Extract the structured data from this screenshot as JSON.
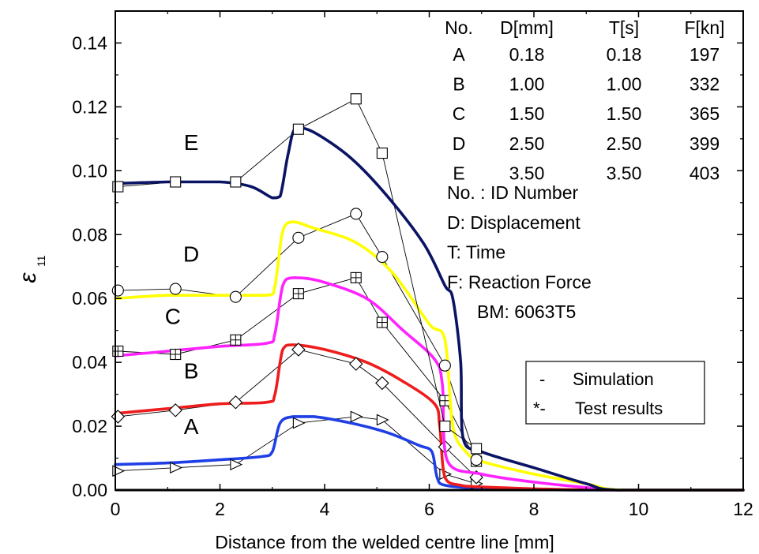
{
  "chart_data": {
    "type": "line",
    "xlabel": "Distance from the welded centre line [mm]",
    "ylabel": "ε",
    "ylabel_sub": "11",
    "xlim": [
      0,
      12
    ],
    "ylim": [
      0,
      0.15
    ],
    "x_ticks": [
      "0",
      "2",
      "4",
      "6",
      "8",
      "10",
      "12"
    ],
    "x_tick_values": [
      0,
      2,
      4,
      6,
      8,
      10,
      12
    ],
    "y_ticks": [
      "0.00",
      "0.02",
      "0.04",
      "0.06",
      "0.08",
      "0.10",
      "0.12",
      "0.14"
    ],
    "y_tick_values": [
      0,
      0.02,
      0.04,
      0.06,
      0.08,
      0.1,
      0.12,
      0.14
    ],
    "grid": false,
    "series": [
      {
        "name": "A",
        "color": "#1f3fe6",
        "marker": "triangle-right",
        "simulation": [
          [
            0,
            0.008
          ],
          [
            1,
            0.0085
          ],
          [
            2,
            0.0095
          ],
          [
            2.8,
            0.0105
          ],
          [
            3,
            0.012
          ],
          [
            3.15,
            0.021
          ],
          [
            3.4,
            0.023
          ],
          [
            3.8,
            0.023
          ],
          [
            4.5,
            0.021
          ],
          [
            5.2,
            0.018
          ],
          [
            5.8,
            0.014
          ],
          [
            6.05,
            0.012
          ],
          [
            6.15,
            0.004
          ],
          [
            6.3,
            0.0015
          ],
          [
            7,
            0.0005
          ],
          [
            8,
            0.0002
          ],
          [
            9,
            0
          ],
          [
            12,
            0
          ]
        ],
        "test": [
          [
            0.05,
            0.006
          ],
          [
            1.15,
            0.007
          ],
          [
            2.3,
            0.008
          ],
          [
            3.5,
            0.021
          ],
          [
            4.6,
            0.023
          ],
          [
            5.1,
            0.022
          ],
          [
            6.3,
            0.005
          ],
          [
            6.9,
            0.002
          ]
        ]
      },
      {
        "name": "B",
        "color": "#ee1c1c",
        "marker": "diamond",
        "simulation": [
          [
            0,
            0.024
          ],
          [
            1,
            0.0255
          ],
          [
            2,
            0.027
          ],
          [
            2.9,
            0.0275
          ],
          [
            3.05,
            0.03
          ],
          [
            3.2,
            0.044
          ],
          [
            3.4,
            0.0455
          ],
          [
            4,
            0.044
          ],
          [
            4.8,
            0.04
          ],
          [
            5.5,
            0.034
          ],
          [
            6.1,
            0.027
          ],
          [
            6.2,
            0.02
          ],
          [
            6.3,
            0.004
          ],
          [
            6.6,
            0.0015
          ],
          [
            7,
            0.001
          ],
          [
            8,
            0.0004
          ],
          [
            9,
            0.0001
          ],
          [
            10,
            0
          ],
          [
            12,
            0
          ]
        ],
        "test": [
          [
            0.05,
            0.023
          ],
          [
            1.15,
            0.025
          ],
          [
            2.3,
            0.0275
          ],
          [
            3.5,
            0.044
          ],
          [
            4.6,
            0.0395
          ],
          [
            5.1,
            0.0335
          ],
          [
            6.3,
            0.0135
          ],
          [
            6.9,
            0.004
          ]
        ]
      },
      {
        "name": "C",
        "color": "#ff22ff",
        "marker": "square-plus",
        "simulation": [
          [
            0,
            0.042
          ],
          [
            1,
            0.0435
          ],
          [
            2,
            0.045
          ],
          [
            2.9,
            0.046
          ],
          [
            3.05,
            0.049
          ],
          [
            3.2,
            0.064
          ],
          [
            3.4,
            0.0665
          ],
          [
            3.9,
            0.0655
          ],
          [
            4.8,
            0.06
          ],
          [
            5.5,
            0.05
          ],
          [
            6.1,
            0.041
          ],
          [
            6.25,
            0.033
          ],
          [
            6.35,
            0.009
          ],
          [
            7,
            0.005
          ],
          [
            8,
            0.0025
          ],
          [
            9,
            0.0008
          ],
          [
            9.7,
            0
          ],
          [
            12,
            0
          ]
        ],
        "test": [
          [
            0.05,
            0.0435
          ],
          [
            1.15,
            0.0425
          ],
          [
            2.3,
            0.047
          ],
          [
            3.5,
            0.0615
          ],
          [
            4.6,
            0.0665
          ],
          [
            5.1,
            0.0525
          ],
          [
            6.3,
            0.028
          ],
          [
            6.9,
            0.009
          ]
        ]
      },
      {
        "name": "D",
        "color": "#ffff00",
        "marker": "circle",
        "simulation": [
          [
            0,
            0.06
          ],
          [
            1,
            0.061
          ],
          [
            2,
            0.061
          ],
          [
            2.9,
            0.061
          ],
          [
            3.05,
            0.064
          ],
          [
            3.2,
            0.081
          ],
          [
            3.4,
            0.084
          ],
          [
            3.8,
            0.082
          ],
          [
            4.6,
            0.0775
          ],
          [
            5.3,
            0.068
          ],
          [
            6,
            0.052
          ],
          [
            6.3,
            0.047
          ],
          [
            6.45,
            0.02
          ],
          [
            6.7,
            0.012
          ],
          [
            7,
            0.009
          ],
          [
            8,
            0.005
          ],
          [
            9,
            0.002
          ],
          [
            9.7,
            0
          ],
          [
            12,
            0
          ]
        ],
        "test": [
          [
            0.05,
            0.0625
          ],
          [
            1.15,
            0.063
          ],
          [
            2.3,
            0.0605
          ],
          [
            3.5,
            0.079
          ],
          [
            4.6,
            0.0865
          ],
          [
            5.1,
            0.073
          ],
          [
            6.3,
            0.039
          ],
          [
            6.9,
            0.0095
          ]
        ]
      },
      {
        "name": "E",
        "color": "#0a1464",
        "marker": "square",
        "simulation": [
          [
            0,
            0.096
          ],
          [
            1,
            0.0965
          ],
          [
            2,
            0.0965
          ],
          [
            2.6,
            0.095
          ],
          [
            3,
            0.0915
          ],
          [
            3.15,
            0.092
          ],
          [
            3.3,
            0.105
          ],
          [
            3.45,
            0.1135
          ],
          [
            3.8,
            0.112
          ],
          [
            4.5,
            0.104
          ],
          [
            5.2,
            0.092
          ],
          [
            5.9,
            0.077
          ],
          [
            6.3,
            0.064
          ],
          [
            6.45,
            0.06
          ],
          [
            6.6,
            0.04
          ],
          [
            6.65,
            0.016
          ],
          [
            7,
            0.012
          ],
          [
            8,
            0.007
          ],
          [
            9,
            0.002
          ],
          [
            9.6,
            0
          ],
          [
            12,
            0
          ]
        ],
        "test": [
          [
            0.05,
            0.095
          ],
          [
            1.15,
            0.0965
          ],
          [
            2.3,
            0.0965
          ],
          [
            3.5,
            0.113
          ],
          [
            4.6,
            0.1225
          ],
          [
            5.1,
            0.1055
          ],
          [
            6.3,
            0.02
          ],
          [
            6.9,
            0.013
          ]
        ]
      }
    ],
    "curve_labels": [
      {
        "text": "E",
        "x": 1.45,
        "y": 0.1065
      },
      {
        "text": "D",
        "x": 1.45,
        "y": 0.0715
      },
      {
        "text": "C",
        "x": 1.1,
        "y": 0.052
      },
      {
        "text": "B",
        "x": 1.45,
        "y": 0.035
      },
      {
        "text": "A",
        "x": 1.45,
        "y": 0.0175
      }
    ],
    "info_table": {
      "headers": [
        "No.",
        "D[mm]",
        "T[s]",
        "F[kn]"
      ],
      "rows": [
        [
          "A",
          "0.18",
          "0.18",
          "197"
        ],
        [
          "B",
          "1.00",
          "1.00",
          "332"
        ],
        [
          "C",
          "1.50",
          "1.50",
          "365"
        ],
        [
          "D",
          "2.50",
          "2.50",
          "399"
        ],
        [
          "E",
          "3.50",
          "3.50",
          "403"
        ]
      ],
      "notes": [
        "No. : ID Number",
        "D: Displacement",
        "T: Time",
        "F:  Reaction Force",
        "BM: 6063T5"
      ]
    },
    "legend": {
      "position": "bottom-right",
      "entries": [
        {
          "symbol": "-",
          "label": "Simulation"
        },
        {
          "symbol": "*-",
          "label": "Test results"
        }
      ]
    }
  }
}
